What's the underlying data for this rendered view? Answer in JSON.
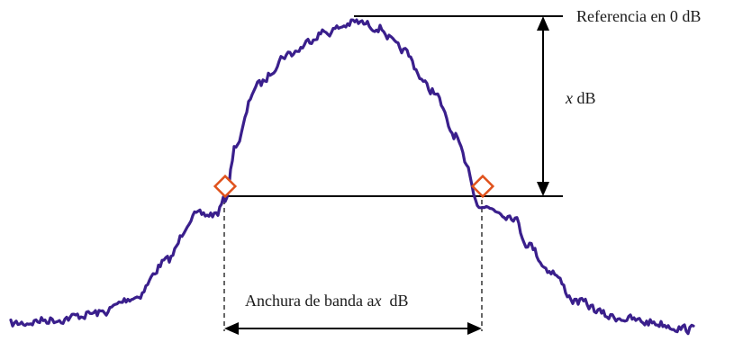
{
  "labels": {
    "reference": "Referencia en 0 dB",
    "x_var": "x",
    "x_unit": " dB",
    "bandwidth_prefix": "Anchura de banda a",
    "bandwidth_var": "x",
    "bandwidth_suffix": "  dB"
  },
  "colors": {
    "trace": "#3a1f8c",
    "marker": "#e0521c",
    "lines": "#000000"
  },
  "icons": {
    "marker": "diamond-marker-icon",
    "arrow": "double-headed-arrow-icon"
  }
}
